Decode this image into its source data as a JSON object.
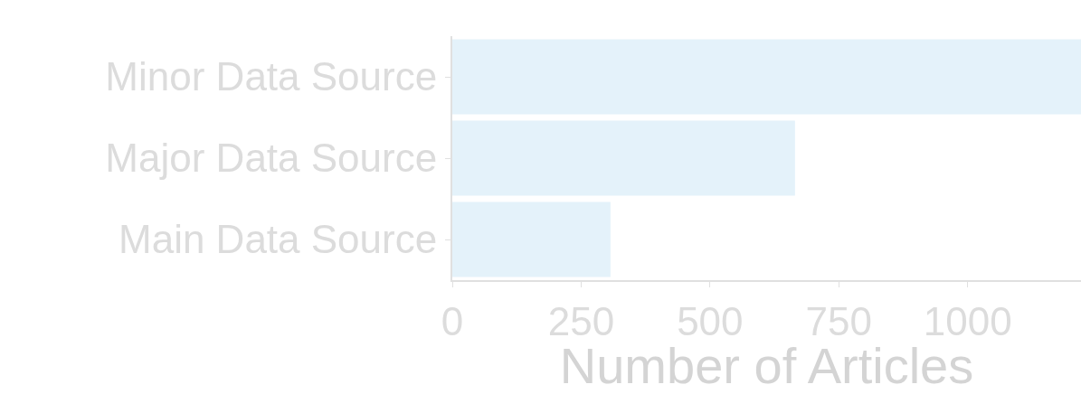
{
  "chart_data": {
    "type": "bar",
    "orientation": "horizontal",
    "xlabel": "Number of Articles",
    "categories": [
      "Minor Data Source",
      "Major Data Source",
      "Main Data Source"
    ],
    "values": [
      1220,
      665,
      307
    ],
    "color": "#e4f2fa",
    "xlim": [
      0,
      1220
    ],
    "xticks": [
      0,
      250,
      500,
      750,
      1000
    ],
    "grid": false
  }
}
